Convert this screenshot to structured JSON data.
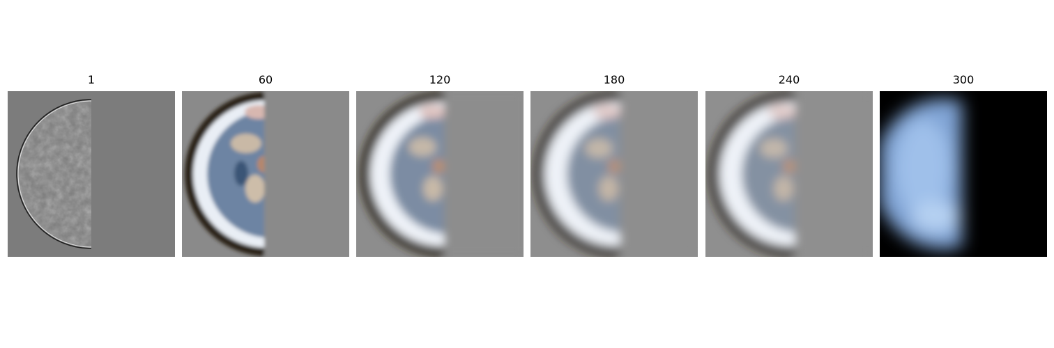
{
  "figure": {
    "panels": [
      {
        "title": "1",
        "style": "edge-detail",
        "background": "#7c7c7c"
      },
      {
        "title": "60",
        "style": "blurred-earth",
        "background": "#8a8a8a"
      },
      {
        "title": "120",
        "style": "blurred-earth",
        "background": "#8d8d8d"
      },
      {
        "title": "180",
        "style": "blurred-earth",
        "background": "#8e8e8e"
      },
      {
        "title": "240",
        "style": "blurred-earth",
        "background": "#8f8f8f"
      },
      {
        "title": "300",
        "style": "low-frequency-glow",
        "background": "#000000"
      }
    ]
  }
}
